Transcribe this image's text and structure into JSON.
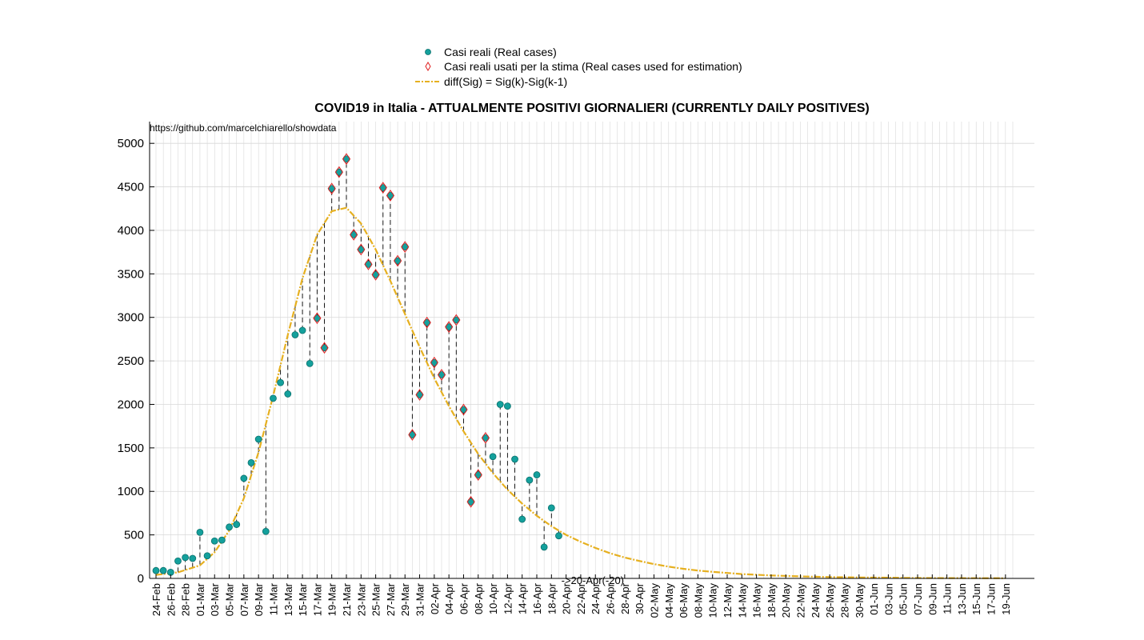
{
  "chart_data": {
    "type": "scatter",
    "title": "COVID19 in Italia - ATTUALMENTE POSITIVI GIORNALIERI (CURRENTLY DAILY POSITIVES)",
    "source_text": "https://github.com/marcelchiarello/showdata",
    "annotation": {
      "text": "->20-Apr(-20)",
      "date": "20-Apr",
      "value": -20
    },
    "xlabel": "",
    "ylabel": "",
    "ylim": [
      0,
      5250
    ],
    "yticks": [
      0,
      500,
      1000,
      1500,
      2000,
      2500,
      3000,
      3500,
      4000,
      4500,
      5000
    ],
    "ytick_labels": [
      "0",
      "500",
      "1000",
      "1500",
      "2000",
      "2500",
      "3000",
      "3500",
      "4000",
      "4500",
      "5000"
    ],
    "grid": true,
    "legend_position": "top-center",
    "x_start": "24-Feb",
    "x_end": "20-Jun",
    "xtick_labels": [
      "24-Feb",
      "26-Feb",
      "28-Feb",
      "01-Mar",
      "03-Mar",
      "05-Mar",
      "07-Mar",
      "09-Mar",
      "11-Mar",
      "13-Mar",
      "15-Mar",
      "17-Mar",
      "19-Mar",
      "21-Mar",
      "23-Mar",
      "25-Mar",
      "27-Mar",
      "29-Mar",
      "31-Mar",
      "02-Apr",
      "04-Apr",
      "06-Apr",
      "08-Apr",
      "10-Apr",
      "12-Apr",
      "14-Apr",
      "16-Apr",
      "18-Apr",
      "20-Apr",
      "22-Apr",
      "24-Apr",
      "26-Apr",
      "28-Apr",
      "30-Apr",
      "02-May",
      "04-May",
      "06-May",
      "08-May",
      "10-May",
      "12-May",
      "14-May",
      "16-May",
      "18-May",
      "20-May",
      "22-May",
      "24-May",
      "26-May",
      "28-May",
      "30-May",
      "01-Jun",
      "03-Jun",
      "05-Jun",
      "07-Jun",
      "09-Jun",
      "11-Jun",
      "13-Jun",
      "15-Jun",
      "17-Jun",
      "19-Jun"
    ],
    "colors": {
      "real": "#14a09c",
      "estimation": "#e02020",
      "fit": "#e6b020",
      "stem": "#000000",
      "grid": "#d8d8d8"
    },
    "series": [
      {
        "name": "Casi reali (Real cases)",
        "type": "scatter",
        "dates": [
          "24-Feb",
          "25-Feb",
          "26-Feb",
          "27-Feb",
          "28-Feb",
          "29-Feb",
          "01-Mar",
          "02-Mar",
          "03-Mar",
          "04-Mar",
          "05-Mar",
          "06-Mar",
          "07-Mar",
          "08-Mar",
          "09-Mar",
          "10-Mar",
          "11-Mar",
          "12-Mar",
          "13-Mar",
          "14-Mar",
          "15-Mar",
          "16-Mar",
          "17-Mar",
          "18-Mar",
          "19-Mar",
          "20-Mar",
          "21-Mar",
          "22-Mar",
          "23-Mar",
          "24-Mar",
          "25-Mar",
          "26-Mar",
          "27-Mar",
          "28-Mar",
          "29-Mar",
          "30-Mar",
          "31-Mar",
          "01-Apr",
          "02-Apr",
          "03-Apr",
          "04-Apr",
          "05-Apr",
          "06-Apr",
          "07-Apr",
          "08-Apr",
          "09-Apr",
          "10-Apr",
          "11-Apr",
          "12-Apr",
          "13-Apr",
          "14-Apr",
          "15-Apr",
          "16-Apr",
          "17-Apr",
          "18-Apr",
          "19-Apr"
        ],
        "values": [
          90,
          90,
          70,
          200,
          240,
          230,
          530,
          260,
          430,
          440,
          590,
          620,
          1150,
          1330,
          1600,
          540,
          2070,
          2250,
          2120,
          2800,
          2850,
          2470,
          2990,
          2650,
          4480,
          4670,
          4820,
          3950,
          3780,
          3610,
          3490,
          4490,
          4400,
          3650,
          3810,
          1650,
          2110,
          2940,
          2480,
          2340,
          2890,
          2970,
          1940,
          880,
          1190,
          1615,
          1400,
          2000,
          1980,
          1370,
          680,
          1130,
          1190,
          360,
          810,
          490
        ]
      },
      {
        "name": "Casi reali usati per la stima (Real cases used for estimation)",
        "type": "scatter",
        "dates": [
          "17-Mar",
          "18-Mar",
          "19-Mar",
          "20-Mar",
          "21-Mar",
          "22-Mar",
          "23-Mar",
          "24-Mar",
          "25-Mar",
          "26-Mar",
          "27-Mar",
          "28-Mar",
          "29-Mar",
          "30-Mar",
          "31-Mar",
          "01-Apr",
          "02-Apr",
          "03-Apr",
          "04-Apr",
          "05-Apr",
          "06-Apr",
          "07-Apr",
          "08-Apr",
          "09-Apr"
        ],
        "values": [
          2990,
          2650,
          4480,
          4670,
          4820,
          3950,
          3780,
          3610,
          3490,
          4490,
          4400,
          3650,
          3810,
          1650,
          2110,
          2940,
          2480,
          2340,
          2890,
          2970,
          1940,
          880,
          1190,
          1615
        ]
      },
      {
        "name": "diff(Sig) = Sig(k)-Sig(k-1)",
        "type": "line",
        "peak_date": "21-Mar",
        "peak_value": 4260,
        "dates": [
          "24-Feb",
          "27-Feb",
          "01-Mar",
          "03-Mar",
          "05-Mar",
          "07-Mar",
          "09-Mar",
          "11-Mar",
          "13-Mar",
          "15-Mar",
          "17-Mar",
          "19-Mar",
          "21-Mar",
          "23-Mar",
          "25-Mar",
          "27-Mar",
          "29-Mar",
          "31-Mar",
          "02-Apr",
          "04-Apr",
          "06-Apr",
          "08-Apr",
          "10-Apr",
          "12-Apr",
          "14-Apr",
          "16-Apr",
          "18-Apr",
          "20-Apr",
          "22-Apr",
          "24-Apr",
          "26-Apr",
          "28-Apr",
          "30-Apr",
          "02-May",
          "04-May",
          "06-May",
          "08-May",
          "10-May",
          "14-May",
          "18-May",
          "22-May",
          "26-May",
          "30-May",
          "03-Jun",
          "07-Jun",
          "11-Jun",
          "15-Jun",
          "19-Jun"
        ],
        "values": [
          40,
          70,
          150,
          300,
          550,
          920,
          1450,
          2100,
          2800,
          3450,
          3950,
          4220,
          4260,
          4080,
          3780,
          3420,
          3040,
          2660,
          2300,
          1980,
          1690,
          1430,
          1210,
          1020,
          860,
          720,
          600,
          500,
          420,
          350,
          290,
          240,
          200,
          165,
          135,
          110,
          90,
          75,
          50,
          34,
          23,
          16,
          11,
          8,
          5,
          4,
          3,
          2
        ]
      }
    ]
  }
}
